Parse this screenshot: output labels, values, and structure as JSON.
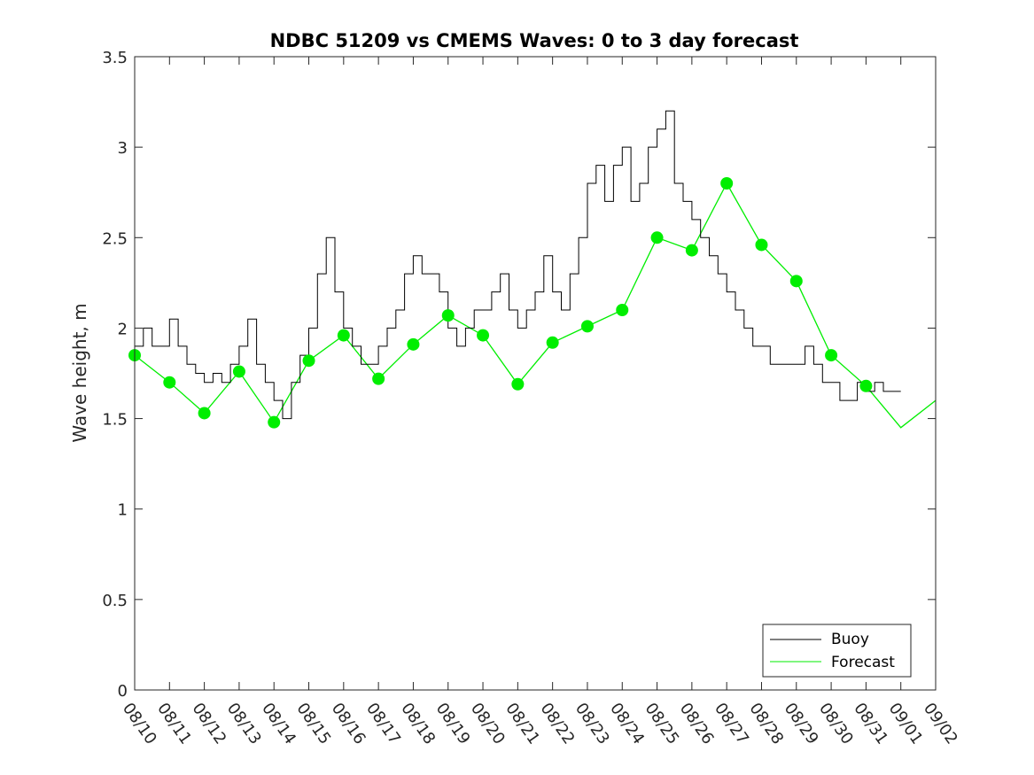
{
  "chart_data": {
    "type": "line",
    "title": "NDBC 51209 vs CMEMS Waves: 0 to 3 day forecast",
    "xlabel": "",
    "ylabel": "Wave height, m",
    "ylim": [
      0,
      3.5
    ],
    "yticks": [
      "0",
      "0.5",
      "1",
      "1.5",
      "2",
      "2.5",
      "3",
      "3.5"
    ],
    "xlim": [
      0,
      23
    ],
    "xtick_labels": [
      "08/10",
      "08/11",
      "08/12",
      "08/13",
      "08/14",
      "08/15",
      "08/16",
      "08/17",
      "08/18",
      "08/19",
      "08/20",
      "08/21",
      "08/22",
      "08/23",
      "08/24",
      "08/25",
      "08/26",
      "08/27",
      "08/28",
      "08/29",
      "08/30",
      "08/31",
      "09/01",
      "09/02"
    ],
    "legend": {
      "position": "bottom-right",
      "entries": [
        "Buoy",
        "Forecast"
      ]
    },
    "colors": {
      "buoy": "#000000",
      "forecast": "#00ee00",
      "marker": "#00ee00"
    },
    "series": [
      {
        "name": "Buoy",
        "x": [
          0,
          0.25,
          0.5,
          0.75,
          1,
          1.25,
          1.5,
          1.75,
          2,
          2.25,
          2.5,
          2.75,
          3,
          3.25,
          3.5,
          3.75,
          4,
          4.25,
          4.5,
          4.75,
          5,
          5.25,
          5.5,
          5.75,
          6,
          6.25,
          6.5,
          6.75,
          7,
          7.25,
          7.5,
          7.75,
          8,
          8.25,
          8.5,
          8.75,
          9,
          9.25,
          9.5,
          9.75,
          10,
          10.25,
          10.5,
          10.75,
          11,
          11.25,
          11.5,
          11.75,
          12,
          12.25,
          12.5,
          12.75,
          13,
          13.25,
          13.5,
          13.75,
          14,
          14.25,
          14.5,
          14.75,
          15,
          15.25,
          15.5,
          15.75,
          16,
          16.25,
          16.5,
          16.75,
          17,
          17.25,
          17.5,
          17.75,
          18,
          18.25,
          18.5,
          18.75,
          19,
          19.25,
          19.5,
          19.75,
          20,
          20.25,
          20.5,
          20.75,
          21,
          21.25,
          21.5,
          21.75,
          22
        ],
        "values": [
          1.9,
          2.0,
          1.9,
          1.9,
          2.05,
          1.9,
          1.8,
          1.75,
          1.7,
          1.75,
          1.7,
          1.8,
          1.9,
          2.05,
          1.8,
          1.7,
          1.6,
          1.5,
          1.7,
          1.85,
          2.0,
          2.3,
          2.5,
          2.2,
          2.0,
          1.9,
          1.8,
          1.8,
          1.9,
          2.0,
          2.1,
          2.3,
          2.4,
          2.3,
          2.3,
          2.2,
          2.0,
          1.9,
          2.0,
          2.1,
          2.1,
          2.2,
          2.3,
          2.1,
          2.0,
          2.1,
          2.2,
          2.4,
          2.2,
          2.1,
          2.3,
          2.5,
          2.8,
          2.9,
          2.7,
          2.9,
          3.0,
          2.7,
          2.8,
          3.0,
          3.1,
          3.2,
          2.8,
          2.7,
          2.6,
          2.5,
          2.4,
          2.3,
          2.2,
          2.1,
          2.0,
          1.9,
          1.9,
          1.8,
          1.8,
          1.8,
          1.8,
          1.9,
          1.8,
          1.7,
          1.7,
          1.6,
          1.6,
          1.7,
          1.65,
          1.7,
          1.65,
          1.65,
          1.65
        ]
      },
      {
        "name": "Forecast",
        "x": [
          0,
          1,
          2,
          3,
          4,
          5,
          6,
          7,
          8,
          9,
          10,
          11,
          12,
          13,
          14,
          15,
          16,
          17,
          18,
          19,
          20,
          21,
          22,
          23
        ],
        "values": [
          1.85,
          1.7,
          1.53,
          1.76,
          1.48,
          1.82,
          1.96,
          1.72,
          1.91,
          2.07,
          1.96,
          1.69,
          1.92,
          2.01,
          2.1,
          2.5,
          2.43,
          2.8,
          2.46,
          2.26,
          1.85,
          1.68,
          1.45,
          1.6
        ]
      }
    ],
    "forecast_start_markers": {
      "x": [
        0,
        1,
        2,
        3,
        4,
        5,
        6,
        7,
        8,
        9,
        10,
        11,
        12,
        13,
        14,
        15,
        16,
        17,
        18,
        19,
        20,
        21
      ],
      "values": [
        1.85,
        1.7,
        1.53,
        1.76,
        1.48,
        1.82,
        1.96,
        1.72,
        1.91,
        2.07,
        1.96,
        1.69,
        1.92,
        2.01,
        2.1,
        2.5,
        2.43,
        2.8,
        2.46,
        2.26,
        1.85,
        1.68
      ]
    }
  }
}
